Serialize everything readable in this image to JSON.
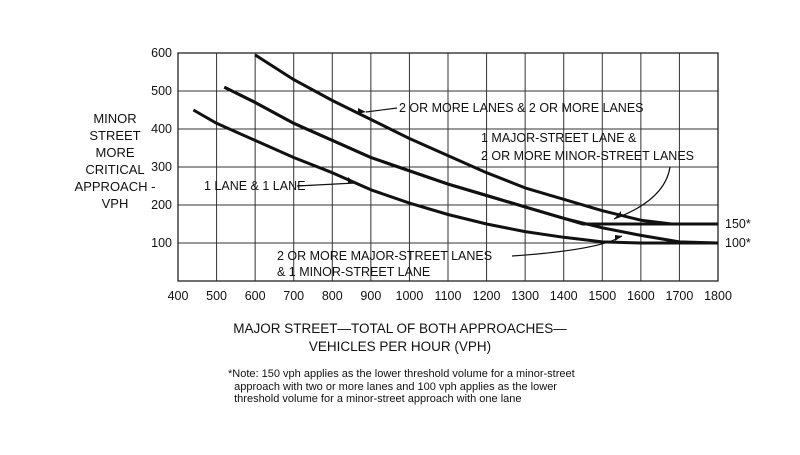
{
  "chart_data": {
    "type": "line",
    "title": "",
    "xlabel": "MAJOR STREET—TOTAL OF BOTH APPROACHES— VEHICLES PER HOUR (VPH)",
    "xlabel_lines": [
      "MAJOR STREET—TOTAL OF BOTH APPROACHES—",
      "VEHICLES PER HOUR (VPH)"
    ],
    "ylabel_lines": [
      "MINOR",
      "STREET",
      "MORE",
      "CRITICAL",
      "APPROACH -",
      "VPH"
    ],
    "xlim": [
      400,
      1800
    ],
    "ylim": [
      0,
      600
    ],
    "grid": true,
    "xticks": [
      400,
      500,
      600,
      700,
      800,
      900,
      1000,
      1100,
      1200,
      1300,
      1400,
      1500,
      1600,
      1700,
      1800
    ],
    "yticks": [
      100,
      200,
      300,
      400,
      500,
      600
    ],
    "series": [
      {
        "name": "2 OR MORE LANES & 2 OR MORE LANES",
        "x": [
          600,
          700,
          800,
          900,
          1000,
          1100,
          1200,
          1300,
          1400,
          1500,
          1600,
          1680,
          1800
        ],
        "y": [
          595,
          530,
          475,
          425,
          375,
          330,
          285,
          245,
          215,
          185,
          160,
          150,
          150
        ]
      },
      {
        "name": "1 MAJOR-STREET LANE & 2 OR MORE MINOR-STREET LANES",
        "x": [
          520,
          600,
          700,
          800,
          900,
          1000,
          1100,
          1200,
          1300,
          1400,
          1450,
          1800
        ],
        "y": [
          510,
          470,
          415,
          370,
          325,
          290,
          255,
          225,
          195,
          165,
          150,
          150
        ]
      },
      {
        "name": "2 OR MORE MAJOR-STREET LANES & 1 MINOR-STREET LANE",
        "x": [
          520,
          600,
          700,
          800,
          900,
          1000,
          1100,
          1200,
          1300,
          1400,
          1500,
          1600,
          1700,
          1800
        ],
        "y": [
          510,
          470,
          415,
          370,
          325,
          290,
          255,
          225,
          195,
          165,
          140,
          120,
          103,
          100
        ]
      },
      {
        "name": "1 LANE & 1 LANE",
        "x": [
          440,
          500,
          600,
          700,
          800,
          900,
          1000,
          1100,
          1200,
          1300,
          1400,
          1500,
          1600,
          1800
        ],
        "y": [
          450,
          415,
          370,
          325,
          285,
          240,
          205,
          175,
          150,
          130,
          115,
          103,
          100,
          100
        ]
      }
    ],
    "annotations": {
      "a22": "2 OR MORE LANES & 2 OR MORE LANES",
      "a12_1": "1 MAJOR-STREET LANE &",
      "a12_2": "2 OR MORE MINOR-STREET LANES",
      "a11": "1 LANE & 1 LANE",
      "a21_1": "2 OR MORE MAJOR-STREET LANES",
      "a21_2": "& 1 MINOR-STREET LANE",
      "t150": "150*",
      "t100": "100*"
    },
    "note": [
      "*Note: 150 vph applies as the lower threshold volume for a minor-street",
      "  approach with two or more lanes and 100 vph applies as the lower",
      "  threshold volume for a minor-street approach with one lane"
    ]
  }
}
